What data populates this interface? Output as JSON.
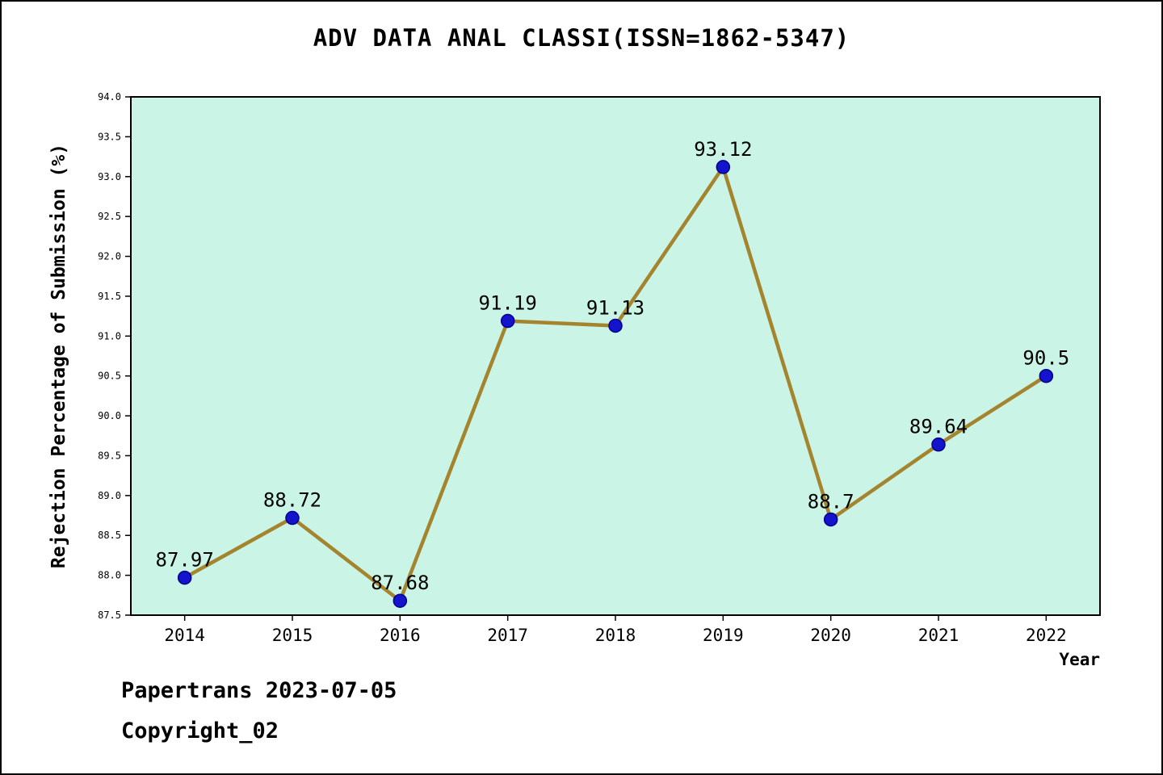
{
  "title": "ADV DATA ANAL CLASSI(ISSN=1862-5347)",
  "footer": {
    "line1": "Papertrans 2023-07-05",
    "line2": "Copyright_02"
  },
  "chart_data": {
    "type": "line",
    "x": [
      2014,
      2015,
      2016,
      2017,
      2018,
      2019,
      2020,
      2021,
      2022
    ],
    "series": [
      {
        "name": "Rejection Percentage of Submission",
        "values": [
          87.97,
          88.72,
          87.68,
          91.19,
          91.13,
          93.12,
          88.7,
          89.64,
          90.5
        ]
      }
    ],
    "point_labels": [
      "87.97",
      "88.72",
      "87.68",
      "91.19",
      "91.13",
      "93.12",
      "88.7",
      "89.64",
      "90.5"
    ],
    "xlabel": "Year",
    "ylabel": "Rejection Percentage of Submission (%)",
    "ylim": [
      87.5,
      94.0
    ],
    "ytick_step": 0.5,
    "grid": false,
    "legend": "none",
    "colors": {
      "line": "#a5842e",
      "marker_fill": "#1414cc",
      "marker_edge": "#00008b",
      "plot_bg": "#c9f4e6",
      "page_bg": "#ffffff",
      "axis": "#000000",
      "text": "#000000"
    }
  }
}
